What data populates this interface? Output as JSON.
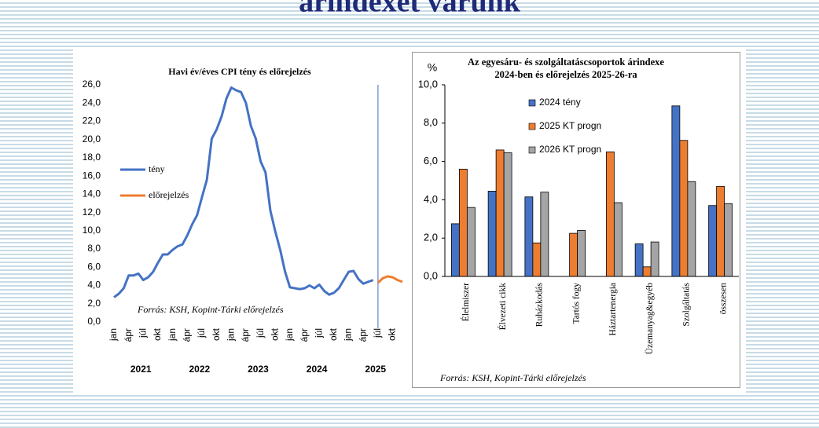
{
  "slide": {
    "title": "árindexet várunk"
  },
  "chart_data": [
    {
      "type": "line",
      "title": "Havi év/éves CPI tény és előrejelzés",
      "categories": [
        "jan",
        null,
        null,
        "ápr",
        null,
        null,
        "júl",
        null,
        null,
        "okt",
        null,
        null,
        "jan",
        null,
        null,
        "ápr",
        null,
        null,
        "júl",
        null,
        null,
        "okt",
        null,
        null,
        "jan",
        null,
        null,
        "ápr",
        null,
        null,
        "júl",
        null,
        null,
        "okt",
        null,
        null,
        "jan",
        null,
        null,
        "ápr",
        null,
        null,
        "júl",
        null,
        null,
        "okt",
        null,
        null,
        "jan",
        null,
        null,
        "ápr",
        null,
        null,
        "júl",
        null,
        null,
        "okt",
        null,
        null
      ],
      "years": [
        "2021",
        "2022",
        "2023",
        "2024",
        "2025"
      ],
      "series": [
        {
          "name": "tény",
          "color": "#4472c4",
          "values": [
            2.7,
            3.1,
            3.7,
            5.1,
            5.1,
            5.3,
            4.6,
            4.9,
            5.5,
            6.5,
            7.4,
            7.4,
            7.9,
            8.3,
            8.5,
            9.5,
            10.7,
            11.7,
            13.7,
            15.6,
            20.1,
            21.1,
            22.5,
            24.5,
            25.7,
            25.4,
            25.2,
            24.0,
            21.5,
            20.1,
            17.6,
            16.4,
            12.2,
            9.9,
            7.9,
            5.5,
            3.8,
            3.7,
            3.6,
            3.7,
            4.0,
            3.7,
            4.1,
            3.4,
            3.0,
            3.2,
            3.7,
            4.6,
            5.5,
            5.6,
            4.7,
            4.2,
            4.4,
            4.6,
            null,
            null,
            null,
            null,
            null,
            null
          ]
        },
        {
          "name": "előrejelzés",
          "color": "#ed7d31",
          "values": [
            null,
            null,
            null,
            null,
            null,
            null,
            null,
            null,
            null,
            null,
            null,
            null,
            null,
            null,
            null,
            null,
            null,
            null,
            null,
            null,
            null,
            null,
            null,
            null,
            null,
            null,
            null,
            null,
            null,
            null,
            null,
            null,
            null,
            null,
            null,
            null,
            null,
            null,
            null,
            null,
            null,
            null,
            null,
            null,
            null,
            null,
            null,
            null,
            null,
            null,
            null,
            null,
            null,
            null,
            4.3,
            4.8,
            5.0,
            4.9,
            4.6,
            4.4
          ]
        }
      ],
      "ylim": [
        0,
        26
      ],
      "yticks": [
        {
          "value": 0,
          "label": "0,0"
        },
        {
          "value": 2,
          "label": "2,0"
        },
        {
          "value": 4,
          "label": "4,0"
        },
        {
          "value": 6,
          "label": "6,0"
        },
        {
          "value": 8,
          "label": "8,0"
        },
        {
          "value": 10,
          "label": "10,0"
        },
        {
          "value": 12,
          "label": "12,0"
        },
        {
          "value": 14,
          "label": "14,0"
        },
        {
          "value": 16,
          "label": "16,0"
        },
        {
          "value": 18,
          "label": "18,0"
        },
        {
          "value": 20,
          "label": "20,0"
        },
        {
          "value": 22,
          "label": "22,0"
        },
        {
          "value": 24,
          "label": "24,0"
        },
        {
          "value": 26,
          "label": "26,0"
        }
      ],
      "source": "Forrás: KSH, Kopint-Tárki előrejelzés"
    },
    {
      "type": "bar",
      "title": [
        "Az egyesáru- és szolgáltatáscsoportok árindexe",
        "2024-ben és előrejelzés 2025-26-ra"
      ],
      "y_label": "%",
      "categories": [
        "Élelmiszer",
        "Élvezeti cikk",
        "Ruházkodás",
        "Tartós fogy",
        "Háztartenergia",
        "Üzemanyag&egyéb",
        "Szolgáltatás",
        "összesen"
      ],
      "series": [
        {
          "name": "2024 tény",
          "color": "#4472c4",
          "values": [
            2.75,
            4.45,
            4.15,
            0.0,
            0.0,
            1.7,
            8.9,
            3.7
          ]
        },
        {
          "name": "2025 KT progn",
          "color": "#ed7d31",
          "values": [
            5.6,
            6.6,
            1.75,
            2.25,
            6.5,
            0.5,
            7.1,
            4.7
          ]
        },
        {
          "name": "2026 KT progn",
          "color": "#a5a5a5",
          "values": [
            3.6,
            6.45,
            4.4,
            2.4,
            3.85,
            1.8,
            4.95,
            3.8
          ]
        }
      ],
      "ylim": [
        0,
        10
      ],
      "yticks": [
        {
          "value": 0,
          "label": "0,0"
        },
        {
          "value": 2,
          "label": "2,0"
        },
        {
          "value": 4,
          "label": "4,0"
        },
        {
          "value": 6,
          "label": "6,0"
        },
        {
          "value": 8,
          "label": "8,0"
        },
        {
          "value": 10,
          "label": "10,0"
        }
      ],
      "source": "Forrás: KSH, Kopint-Tárki előrejelzés"
    }
  ]
}
